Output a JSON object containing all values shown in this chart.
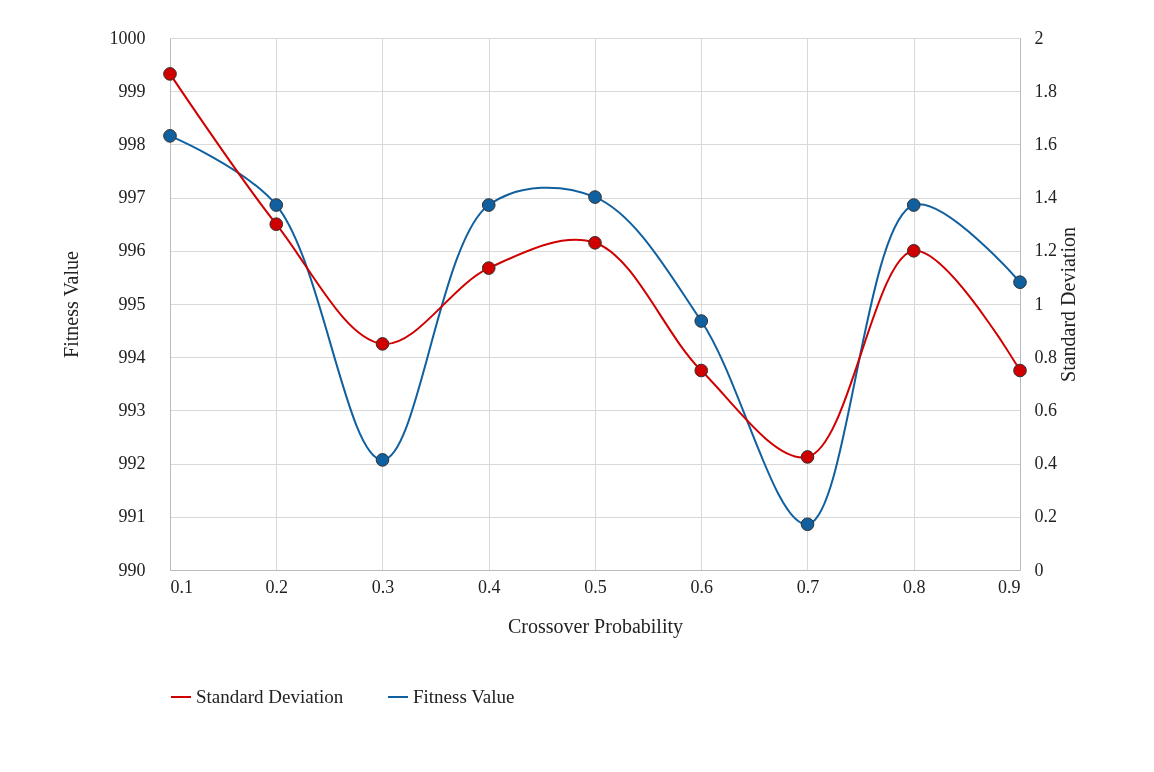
{
  "chart_data": {
    "type": "line",
    "xlabel": "Crossover Probability",
    "ylabel": "Fitness Value",
    "y2label": "Standard Deviation",
    "x": [
      0.1,
      0.2,
      0.3,
      0.4,
      0.5,
      0.6,
      0.7,
      0.8,
      0.9
    ],
    "xlim": [
      0.1,
      0.9
    ],
    "xticks": [
      0.1,
      0.2,
      0.3,
      0.4,
      0.5,
      0.6,
      0.7,
      0.8,
      0.9
    ],
    "ylim": [
      990,
      1000
    ],
    "yticks": [
      990,
      991,
      992,
      993,
      994,
      995,
      996,
      997,
      998,
      999,
      1000
    ],
    "y2lim": [
      0,
      2
    ],
    "y2ticks": [
      0,
      0.2,
      0.4,
      0.6,
      0.8,
      1,
      1.2,
      1.4,
      1.6,
      1.8,
      2
    ],
    "series": [
      {
        "name": "Standard Deviation",
        "color": "#d00000",
        "axis": "y2",
        "values": [
          1.865,
          1.3,
          0.85,
          1.135,
          1.23,
          0.75,
          0.425,
          1.2,
          0.75
        ]
      },
      {
        "name": "Fitness Value",
        "color": "#1060a0",
        "axis": "y",
        "values": [
          998.16,
          996.86,
          992.07,
          996.86,
          997.01,
          994.68,
          990.86,
          996.86,
          995.41
        ]
      }
    ],
    "grid": true,
    "legend": "bottom",
    "marker": "circle",
    "line_style": "solid"
  }
}
